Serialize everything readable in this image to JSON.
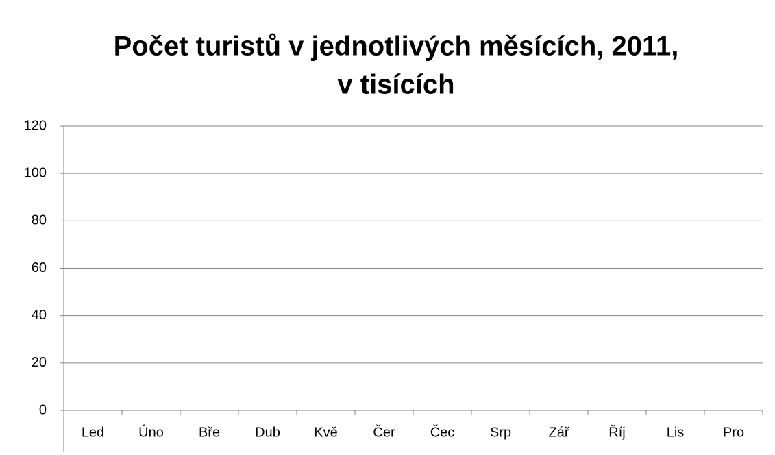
{
  "chart_data": {
    "type": "bar",
    "title": [
      "Počet turistů v jednotlivých měsících, 2011,",
      "v tisících"
    ],
    "categories": [
      "Led",
      "Úno",
      "Bře",
      "Dub",
      "Kvě",
      "Čer",
      "Čec",
      "Srp",
      "Zář",
      "Říj",
      "Lis",
      "Pro"
    ],
    "ylim": [
      0,
      120
    ],
    "yticks": [
      0,
      20,
      40,
      60,
      80,
      100,
      120
    ],
    "grid": true
  }
}
